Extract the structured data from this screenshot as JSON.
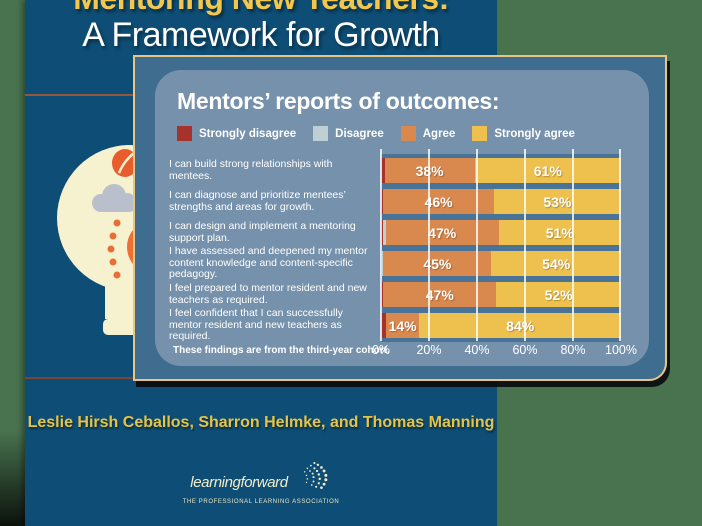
{
  "cover": {
    "title_line1": "Mentoring New Teachers:",
    "title_line2": "A Framework for Growth",
    "authors": "Leslie Hirsh Ceballos, Sharron Helmke, and Thomas Manning",
    "logo": {
      "wordmark": "learningforward",
      "tagline": "THE PROFESSIONAL LEARNING ASSOCIATION"
    },
    "colors": {
      "cover_blue": "#0e4e76",
      "title_yellow": "#f2c74b",
      "rule_top": "#96563a",
      "rule_bottom": "#7c4434",
      "background_green": "#49734f"
    }
  },
  "chart_panel": {
    "title": "Mentors’ reports of outcomes:",
    "legend": [
      {
        "label": "Strongly disagree",
        "color": "#a5332b"
      },
      {
        "label": "Disagree",
        "color": "#bed0d4"
      },
      {
        "label": "Agree",
        "color": "#d9884e"
      },
      {
        "label": "Strongly agree",
        "color": "#eec04d"
      }
    ],
    "axis_labels": [
      "0%",
      "20%",
      "40%",
      "60%",
      "80%",
      "100%"
    ],
    "footnote": "These findings are from the third-year cohort.",
    "colors": {
      "panel_outer": "#3f6d90",
      "panel_inner": "#7691ab",
      "panel_border": "#e9c583",
      "plot_background": "#4a7398"
    }
  },
  "chart_data": {
    "type": "bar",
    "orientation": "horizontal",
    "stacked": true,
    "title": "Mentors’ reports of outcomes:",
    "categories": [
      "I can build strong relationships with mentees.",
      "I can diagnose and prioritize mentees’ strengths and areas for growth.",
      "I can design and implement a mentoring support plan.",
      "I have assessed and deepened my mentor content knowledge and content-specific pedagogy.",
      "I feel prepared to mentor resident and new teachers as required.",
      "I feel confident that I can successfully mentor resident and new teachers as required."
    ],
    "series": [
      {
        "name": "Strongly disagree",
        "color": "#a5332b",
        "values": [
          1.5,
          1,
          1,
          0.5,
          1,
          2
        ],
        "labels": null
      },
      {
        "name": "Disagree",
        "color": "#bed0d4",
        "values": [
          0,
          0,
          1,
          0.5,
          0,
          0
        ],
        "labels": null
      },
      {
        "name": "Agree",
        "color": "#d9884e",
        "values": [
          37.5,
          46,
          47,
          45,
          47,
          14
        ],
        "labels": [
          "38%",
          "46%",
          "47%",
          "45%",
          "47%",
          "14%"
        ]
      },
      {
        "name": "Strongly agree",
        "color": "#eec04d",
        "values": [
          61,
          53,
          51,
          54,
          52,
          84
        ],
        "labels": [
          "61%",
          "53%",
          "51%",
          "54%",
          "52%",
          "84%"
        ]
      }
    ],
    "xlim": [
      0,
      100
    ],
    "x_ticks": [
      "0%",
      "20%",
      "40%",
      "60%",
      "80%",
      "100%"
    ],
    "grid": true,
    "legend_position": "top",
    "footnote": "These findings are from the third-year cohort."
  }
}
